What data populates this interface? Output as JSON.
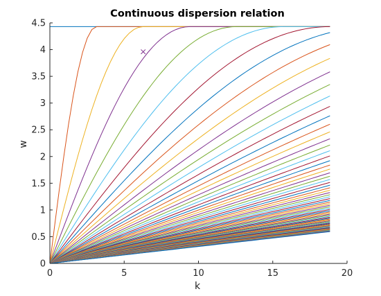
{
  "chart_data": {
    "type": "line",
    "title": "Continuous dispersion relation",
    "xlabel": "k",
    "ylabel": "w",
    "xlim": [
      0,
      20
    ],
    "ylim": [
      0,
      4.5
    ],
    "x_ticks": [
      0,
      5,
      10,
      15,
      20
    ],
    "x_tick_labels": [
      "0",
      "5",
      "10",
      "15",
      "20"
    ],
    "y_ticks": [
      0,
      0.5,
      1,
      1.5,
      2,
      2.5,
      3,
      3.5,
      4,
      4.5
    ],
    "y_tick_labels": [
      "0",
      "0.5",
      "1",
      "1.5",
      "2",
      "2.5",
      "3",
      "3.5",
      "4",
      "4.5"
    ],
    "grid": false,
    "legend": "none",
    "k_max": 18.85,
    "curve_family": {
      "description_formula": "w = w_max * sin(k / (2*n))",
      "w_max": 4.43,
      "n_from": 1,
      "n_to": 70
    },
    "series": [
      {
        "x": [
          0,
          18.85
        ],
        "y": [
          4.43,
          4.43
        ],
        "color": "#0072bd"
      },
      {
        "x": [
          0,
          1,
          2,
          3,
          4,
          5,
          6.28,
          8,
          10,
          12,
          14,
          16,
          18.85
        ],
        "y": [
          0,
          2.12,
          3.41,
          3.99,
          4.22,
          4.32,
          3.96,
          4.4,
          4.42,
          4.43,
          4.43,
          4.43,
          4.4
        ],
        "color": "#d95319"
      },
      {
        "x": [
          0,
          5,
          10,
          15,
          18.85
        ],
        "y": [
          0,
          3.24,
          4.13,
          4.25,
          4.22
        ],
        "color": "#edb120"
      },
      {
        "x": [
          0,
          5,
          10,
          15,
          18.85
        ],
        "y": [
          0,
          2.12,
          3.41,
          3.99,
          3.97
        ],
        "color": "#7e2f8e"
      }
    ],
    "annotations": [
      {
        "type": "marker",
        "symbol": "x",
        "x": 6.28,
        "y": 3.96,
        "color": "#7e2f8e"
      }
    ],
    "colors": [
      "#0072bd",
      "#d95319",
      "#edb120",
      "#7e2f8e",
      "#77ac30",
      "#4dbeee",
      "#a2142f"
    ]
  }
}
